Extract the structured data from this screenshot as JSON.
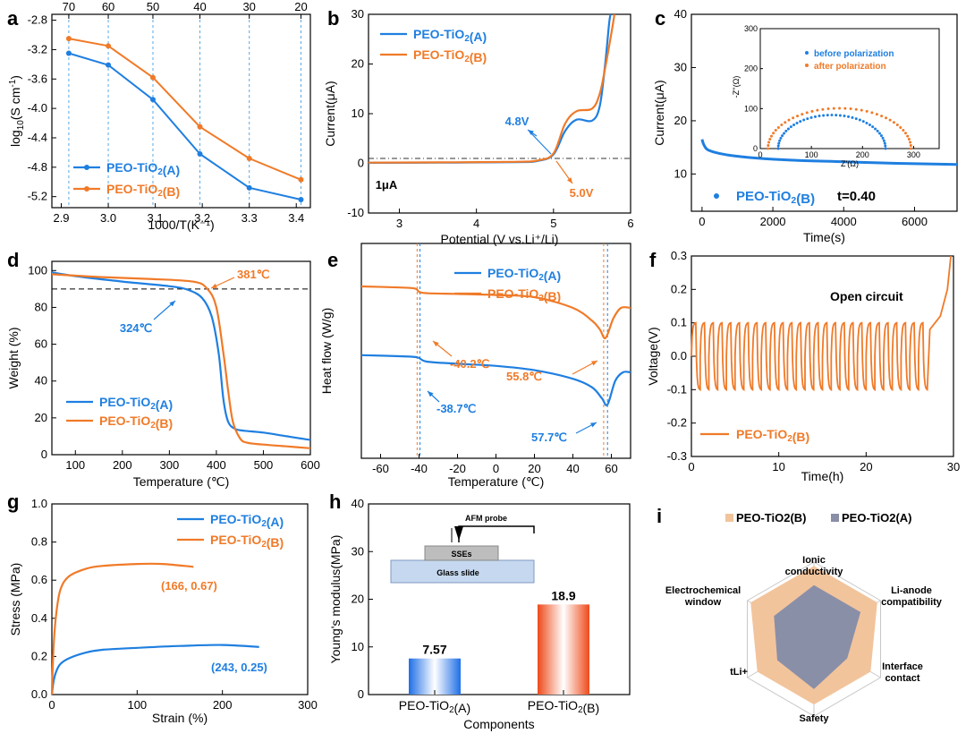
{
  "colors": {
    "a": "#1f7fe0",
    "b": "#f07a28",
    "axis": "#000000",
    "grid": "#5aa9e6"
  },
  "chart_data": [
    {
      "panel": "a",
      "type": "line",
      "title": "",
      "xlabel": "1000/T(K⁻¹)",
      "ylabel_parts": [
        "log",
        "10",
        "(S cm",
        "-1",
        ")"
      ],
      "xlim": [
        2.88,
        3.43
      ],
      "ylim": [
        -5.35,
        -2.72
      ],
      "xticks": [
        2.9,
        3.0,
        3.1,
        3.2,
        3.3,
        3.4
      ],
      "yticks": [
        -2.8,
        -3.2,
        -3.6,
        -4.0,
        -4.4,
        -4.8,
        -5.2
      ],
      "top_axis_ticks": [
        {
          "x": 2.916,
          "label": "70"
        },
        {
          "x": 3.0,
          "label": "60"
        },
        {
          "x": 3.095,
          "label": "50"
        },
        {
          "x": 3.195,
          "label": "40"
        },
        {
          "x": 3.3,
          "label": "30"
        },
        {
          "x": 3.41,
          "label": "20"
        }
      ],
      "legend": "bottom-left",
      "series": [
        {
          "name": "PEO-TiO₂(A)",
          "color": "a",
          "x": [
            2.916,
            3.0,
            3.095,
            3.195,
            3.3,
            3.41
          ],
          "y": [
            -3.25,
            -3.41,
            -3.88,
            -4.62,
            -5.08,
            -5.24
          ]
        },
        {
          "name": "PEO-TiO₂(B)",
          "color": "b",
          "x": [
            2.916,
            3.0,
            3.095,
            3.195,
            3.3,
            3.41
          ],
          "y": [
            -3.05,
            -3.15,
            -3.58,
            -4.25,
            -4.68,
            -4.97
          ]
        }
      ]
    },
    {
      "panel": "b",
      "type": "line",
      "xlabel": "Potential (V vs.Li⁺/Li)",
      "ylabel": "Current(μA)",
      "xlim": [
        2.6,
        6.0
      ],
      "ylim": [
        -10,
        30
      ],
      "xticks": [
        3,
        4,
        5,
        6
      ],
      "yticks": [
        -10,
        0,
        10,
        20,
        30
      ],
      "baseline_y": 1,
      "annotations": [
        "4.8V",
        "5.0V",
        "1μA"
      ],
      "series": [
        {
          "name": "PEO-TiO₂(A)",
          "color": "a",
          "x": [
            2.6,
            3.5,
            4.5,
            4.8,
            5.0,
            5.15,
            5.3,
            5.5,
            5.6,
            5.67,
            5.72,
            5.74
          ],
          "y": [
            0.1,
            0.15,
            0.25,
            0.5,
            1.8,
            6.5,
            8.8,
            8.6,
            11.5,
            20,
            28,
            30
          ]
        },
        {
          "name": "PEO-TiO₂(B)",
          "color": "b",
          "x": [
            2.6,
            3.5,
            4.5,
            4.8,
            5.0,
            5.15,
            5.3,
            5.5,
            5.6,
            5.68,
            5.76,
            5.79
          ],
          "y": [
            0.15,
            0.2,
            0.3,
            0.6,
            2.0,
            8.0,
            10.5,
            11.0,
            14.0,
            20,
            27,
            30
          ]
        }
      ]
    },
    {
      "panel": "c",
      "type": "line",
      "xlabel": "Time(s)",
      "ylabel": "Current(μA)",
      "xlim": [
        -300,
        7200
      ],
      "ylim": [
        3,
        40
      ],
      "xticks": [
        0,
        2000,
        4000,
        6000
      ],
      "yticks": [
        10,
        20,
        30,
        40
      ],
      "annotation": "t=0.40",
      "series": [
        {
          "name": "PEO-TiO₂(B)",
          "color": "a",
          "x": [
            0,
            50,
            150,
            400,
            800,
            1500,
            2500,
            4000,
            5500,
            7200
          ],
          "y": [
            16.5,
            15.5,
            14.6,
            14.0,
            13.5,
            13.0,
            12.6,
            12.3,
            12.0,
            11.8
          ]
        }
      ],
      "inset": {
        "xlabel": "Z'(Ω)",
        "ylabel": "-Z''(Ω)",
        "xlim": [
          0,
          350
        ],
        "ylim": [
          0,
          300
        ],
        "xticks": [
          0,
          100,
          200,
          300
        ],
        "yticks": [
          0,
          100,
          200,
          300
        ],
        "series": [
          {
            "name": "before polarization",
            "color": "a",
            "center": 140,
            "radius": 105,
            "y_scale": 0.8
          },
          {
            "name": "after polarization",
            "color": "b",
            "center": 155,
            "radius": 140,
            "y_scale": 0.72
          }
        ]
      }
    },
    {
      "panel": "d",
      "type": "line",
      "xlabel": "Temperature (℃)",
      "ylabel": "Weight (%)",
      "xlim": [
        50,
        600
      ],
      "ylim": [
        0,
        105
      ],
      "xticks": [
        100,
        200,
        300,
        400,
        500,
        600
      ],
      "yticks": [
        0,
        20,
        40,
        60,
        80,
        100
      ],
      "reference_y": 90,
      "annotations": [
        "381℃",
        "324℃"
      ],
      "series": [
        {
          "name": "PEO-TiO₂(A)",
          "color": "a",
          "x": [
            50,
            100,
            200,
            300,
            340,
            370,
            390,
            405,
            415,
            425,
            440,
            460,
            500,
            550,
            600
          ],
          "y": [
            99,
            97,
            94,
            91.5,
            89.5,
            85,
            75,
            55,
            30,
            18,
            14,
            13,
            12,
            10,
            8
          ]
        },
        {
          "name": "PEO-TiO₂(B)",
          "color": "b",
          "x": [
            50,
            150,
            250,
            350,
            381,
            400,
            415,
            425,
            435,
            450,
            465,
            500,
            550,
            600
          ],
          "y": [
            98,
            96.5,
            95.5,
            94,
            90,
            80,
            55,
            35,
            18,
            9,
            6.5,
            5.5,
            4.5,
            3.5
          ]
        }
      ]
    },
    {
      "panel": "e",
      "type": "line",
      "xlabel": "Temperature (℃)",
      "ylabel": "Heat flow (W/g)",
      "xlim": [
        -70,
        70
      ],
      "ylim": [
        0,
        100
      ],
      "xticks": [
        -60,
        -40,
        -20,
        0,
        20,
        40,
        60
      ],
      "annotations": [
        "-40.2℃",
        "55.8℃",
        "-38.7℃",
        "57.7℃"
      ],
      "series": [
        {
          "name": "PEO-TiO₂(A)",
          "color": "a",
          "x": [
            -70,
            -50,
            -41,
            -36,
            -20,
            0,
            20,
            40,
            50,
            55,
            58,
            62,
            66,
            70
          ],
          "y": [
            48,
            47.5,
            47,
            45,
            44,
            43,
            41,
            37,
            33,
            28,
            25,
            36,
            40,
            40
          ]
        },
        {
          "name": "PEO-TiO₂(B)",
          "color": "b",
          "x": [
            -70,
            -50,
            -42,
            -38,
            -20,
            0,
            20,
            40,
            50,
            54,
            57,
            61,
            65,
            70
          ],
          "y": [
            80,
            79.5,
            79,
            77,
            76.5,
            76,
            75,
            70,
            64,
            60,
            56,
            65,
            70,
            70
          ]
        }
      ]
    },
    {
      "panel": "f",
      "type": "line",
      "title": "Open circuit",
      "xlabel": "Time(h)",
      "ylabel": "Voltage(V)",
      "xlim": [
        0,
        30
      ],
      "ylim": [
        -0.3,
        0.3
      ],
      "xticks": [
        0,
        10,
        20,
        30
      ],
      "yticks": [
        -0.3,
        -0.2,
        -0.1,
        0.0,
        0.1,
        0.2,
        0.3
      ],
      "cycle_hours": 1,
      "cycle_count": 27,
      "amplitude": 0.1,
      "series": [
        {
          "name": "PEO-TiO₂(B)",
          "color": "b"
        }
      ]
    },
    {
      "panel": "g",
      "type": "line",
      "xlabel": "Strain (%)",
      "ylabel": "Stress (MPa)",
      "xlim": [
        0,
        300
      ],
      "ylim": [
        0,
        1.0
      ],
      "xticks": [
        0,
        100,
        200,
        300
      ],
      "yticks": [
        0.0,
        0.2,
        0.4,
        0.6,
        0.8,
        1.0
      ],
      "annotations": [
        "(166, 0.67)",
        "(243, 0.25)"
      ],
      "series": [
        {
          "name": "PEO-TiO₂(A)",
          "color": "a",
          "x": [
            0,
            2,
            5,
            10,
            20,
            40,
            60,
            100,
            150,
            200,
            243
          ],
          "y": [
            0,
            0.07,
            0.12,
            0.16,
            0.19,
            0.22,
            0.235,
            0.245,
            0.255,
            0.26,
            0.25
          ]
        },
        {
          "name": "PEO-TiO₂(B)",
          "color": "b",
          "x": [
            0,
            2,
            5,
            10,
            20,
            40,
            60,
            100,
            130,
            166
          ],
          "y": [
            0,
            0.25,
            0.42,
            0.55,
            0.62,
            0.66,
            0.675,
            0.685,
            0.685,
            0.67
          ]
        }
      ]
    },
    {
      "panel": "h",
      "type": "bar",
      "xlabel": "Components",
      "ylabel": "Young's modulus(MPa)",
      "ylim": [
        0,
        40
      ],
      "yticks": [
        0,
        10,
        20,
        30,
        40
      ],
      "categories": [
        "PEO-TiO₂(A)",
        "PEO-TiO₂(B)"
      ],
      "values": [
        7.57,
        18.9
      ],
      "value_labels": [
        "7.57",
        "18.9"
      ],
      "inset_labels": {
        "probe": "AFM probe",
        "sample": "SSEs",
        "substrate": "Glass slide"
      }
    },
    {
      "panel": "i",
      "type": "radar",
      "axes": [
        "Ionic conductivity",
        "Li-anode compatibility",
        "Interface contact",
        "Safety",
        "tLi+",
        "Electrochemical window"
      ],
      "series": [
        {
          "name": "PEO-TiO2(B)",
          "color": "#f2c49c",
          "values": [
            0.95,
            0.95,
            0.85,
            0.85,
            0.85,
            0.95
          ]
        },
        {
          "name": "PEO-TiO2(A)",
          "color": "#8a8fa8",
          "values": [
            0.7,
            0.7,
            0.5,
            0.65,
            0.55,
            0.6
          ]
        }
      ]
    }
  ]
}
